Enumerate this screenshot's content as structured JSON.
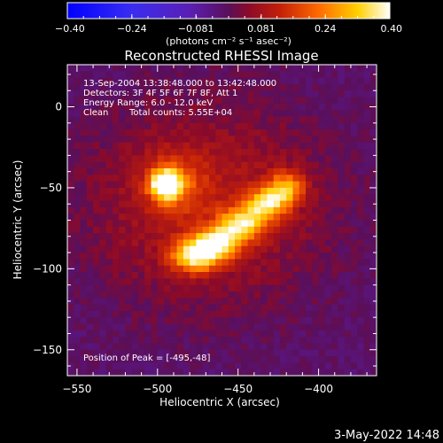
{
  "chart_data": {
    "type": "heatmap",
    "title": "Reconstructed RHESSI Image",
    "xlabel": "Heliocentric X (arcsec)",
    "ylabel": "Heliocentric Y (arcsec)",
    "xlim": [
      -556,
      -364
    ],
    "ylim": [
      -166,
      26
    ],
    "x_ticks": [
      -550,
      -500,
      -450,
      -400
    ],
    "y_ticks": [
      0,
      -50,
      -100,
      -150
    ],
    "x_tick_labels": [
      "−550",
      "−500",
      "−450",
      "−400"
    ],
    "y_tick_labels": [
      "0",
      "−50",
      "−100",
      "−150"
    ],
    "colorbar": {
      "min": -0.4,
      "max": 0.4,
      "ticks": [
        -0.4,
        -0.24,
        -0.081,
        0.081,
        0.24,
        0.4
      ],
      "tick_labels": [
        "−0.40",
        "−0.24",
        "−0.081",
        "0.081",
        "0.24",
        "0.40"
      ],
      "unit_label": "(photons cm⁻² s⁻¹ asec⁻²)"
    },
    "annotations": [
      "13-Sep-2004 13:38:48.000 to 13:42:48.000",
      "Detectors: 3F 4F 5F 6F 7F 8F, Att 1",
      "Energy Range: 6.0 - 12.0 keV",
      "Clean",
      "Total counts: 5.55E+04",
      "Position of Peak = [-495,-48]"
    ],
    "peak": [
      -495,
      -48
    ],
    "sources": [
      {
        "x": -495,
        "y": -48,
        "amp": 0.4,
        "sx": 6,
        "sy": 6
      },
      {
        "x": -490,
        "y": -47,
        "amp": 0.14,
        "sx": 13,
        "sy": 13
      },
      {
        "x": -477,
        "y": -92,
        "amp": 0.34,
        "sx": 10,
        "sy": 7
      },
      {
        "x": -462,
        "y": -84,
        "amp": 0.3,
        "sx": 10,
        "sy": 7
      },
      {
        "x": -447,
        "y": -72,
        "amp": 0.28,
        "sx": 10,
        "sy": 7
      },
      {
        "x": -432,
        "y": -60,
        "amp": 0.27,
        "sx": 9,
        "sy": 7
      },
      {
        "x": -420,
        "y": -50,
        "amp": 0.24,
        "sx": 8,
        "sy": 7
      },
      {
        "x": -470,
        "y": -60,
        "amp": 0.12,
        "sx": 55,
        "sy": 45
      }
    ],
    "grid": false
  },
  "footer": {
    "date": "3-May-2022 14:48"
  }
}
